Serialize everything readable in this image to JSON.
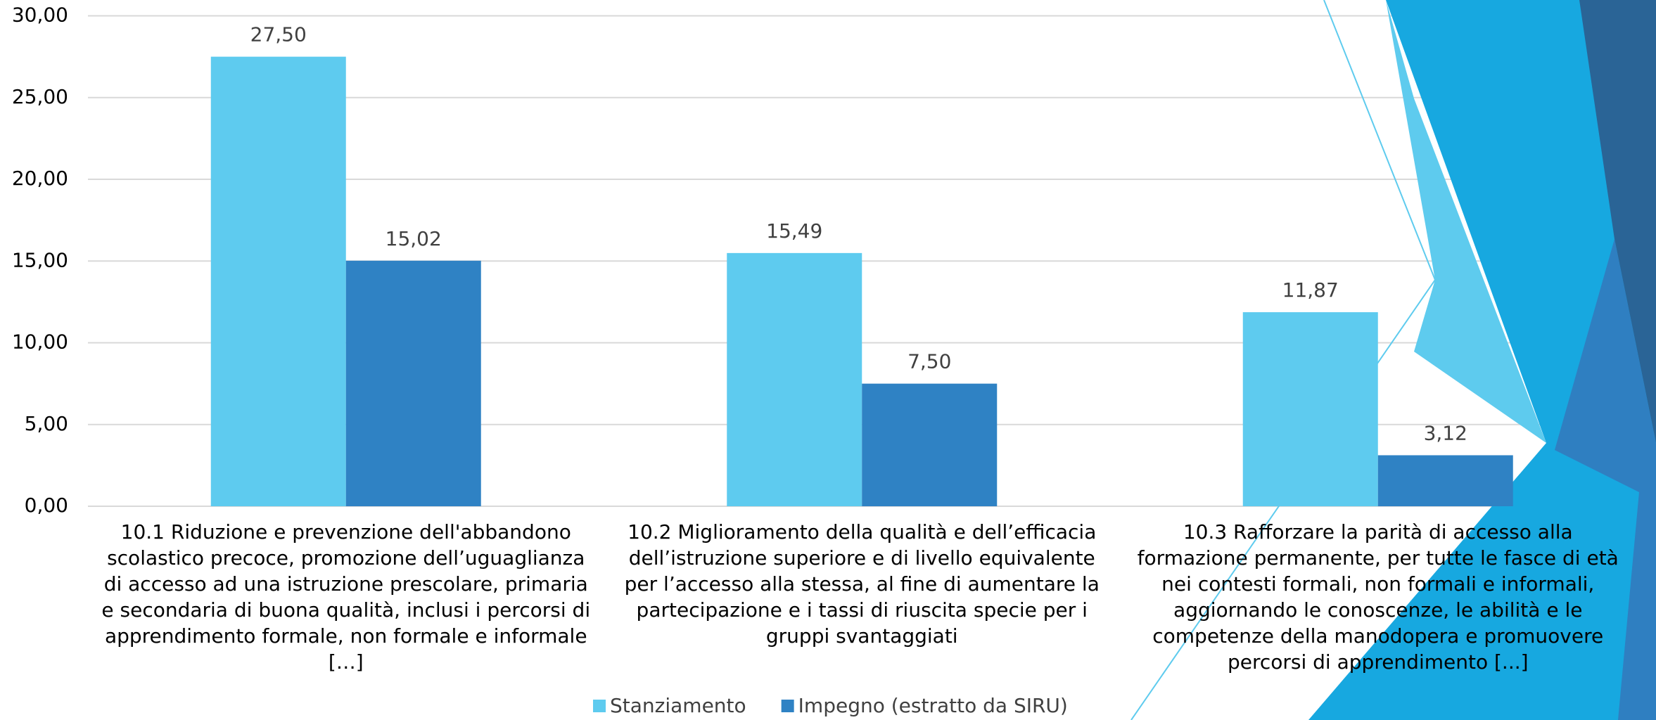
{
  "chart_data": {
    "type": "bar",
    "categories": [
      "10.1 Riduzione e prevenzione dell'abbandono scolastico precoce, promozione dell’uguaglianza di accesso ad una istruzione prescolare, primaria e secondaria di buona qualità, inclusi i percorsi di apprendimento formale, non formale e informale […]",
      "10.2 Miglioramento della qualità e dell’efficacia dell’istruzione superiore e di livello equivalente per l’accesso alla stessa, al fine di aumentare la partecipazione e i tassi di riuscita specie per i gruppi svantaggiati",
      "10.3 Rafforzare la parità di accesso alla formazione permanente, per tutte le fasce di età nei contesti formali, non formali e informali, aggiornando le conoscenze, le abilità e le competenze della manodopera e promuovere percorsi di apprendimento [...]"
    ],
    "series": [
      {
        "name": "Stanziamento",
        "color": "#5ecbef",
        "values": [
          27.5,
          15.49,
          11.87
        ],
        "value_labels": [
          "27,50",
          "15,49",
          "11,87"
        ]
      },
      {
        "name": "Impegno (estratto da SIRU)",
        "color": "#2f82c4",
        "values": [
          15.02,
          7.5,
          3.12
        ],
        "value_labels": [
          "15,02",
          "7,50",
          "3,12"
        ]
      }
    ],
    "ylim": [
      0,
      30
    ],
    "yticks": [
      {
        "value": 0,
        "label": "0,00"
      },
      {
        "value": 5,
        "label": "5,00"
      },
      {
        "value": 10,
        "label": "10,00"
      },
      {
        "value": 15,
        "label": "15,00"
      },
      {
        "value": 20,
        "label": "20,00"
      },
      {
        "value": 25,
        "label": "25,00"
      },
      {
        "value": 30,
        "label": "30,00"
      }
    ],
    "grid": true,
    "legend": "bottom"
  }
}
